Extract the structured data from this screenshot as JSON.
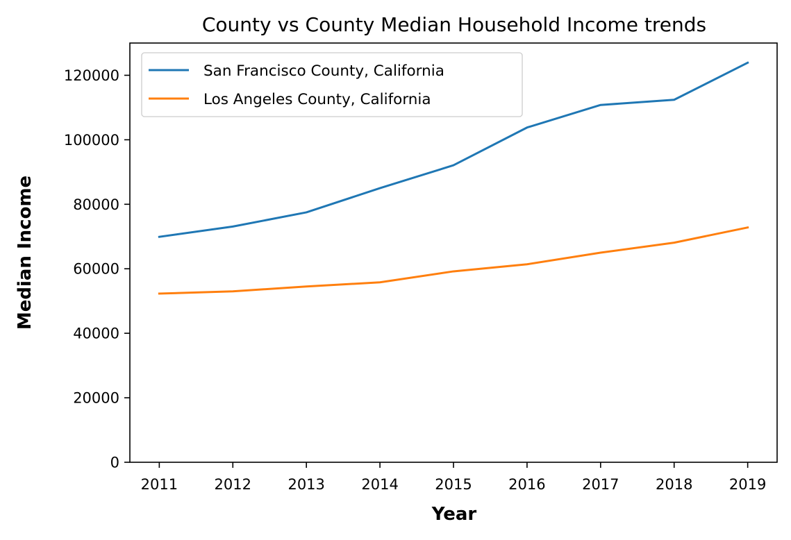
{
  "chart_data": {
    "type": "line",
    "title": "County vs County Median Household Income trends",
    "xlabel": "Year",
    "ylabel": "Median Income",
    "x": [
      2011,
      2012,
      2013,
      2014,
      2015,
      2016,
      2017,
      2018,
      2019
    ],
    "x_tick_labels": [
      "2011",
      "2012",
      "2013",
      "2014",
      "2015",
      "2016",
      "2017",
      "2018",
      "2019"
    ],
    "y_ticks": [
      0,
      20000,
      40000,
      60000,
      80000,
      100000,
      120000
    ],
    "y_tick_labels": [
      "0",
      "20000",
      "40000",
      "60000",
      "80000",
      "100000",
      "120000"
    ],
    "ylim": [
      0,
      130000
    ],
    "xlim": [
      2010.6,
      2019.4
    ],
    "grid": false,
    "legend_position": "top-left",
    "series": [
      {
        "name": "San Francisco County, California",
        "color": "#1f77b4",
        "values": [
          69900,
          73100,
          77500,
          85000,
          92100,
          103800,
          110800,
          112400,
          123900
        ]
      },
      {
        "name": "Los Angeles County, California",
        "color": "#ff7f0e",
        "values": [
          52300,
          53000,
          54500,
          55800,
          59200,
          61400,
          65000,
          68100,
          72800
        ]
      }
    ]
  }
}
